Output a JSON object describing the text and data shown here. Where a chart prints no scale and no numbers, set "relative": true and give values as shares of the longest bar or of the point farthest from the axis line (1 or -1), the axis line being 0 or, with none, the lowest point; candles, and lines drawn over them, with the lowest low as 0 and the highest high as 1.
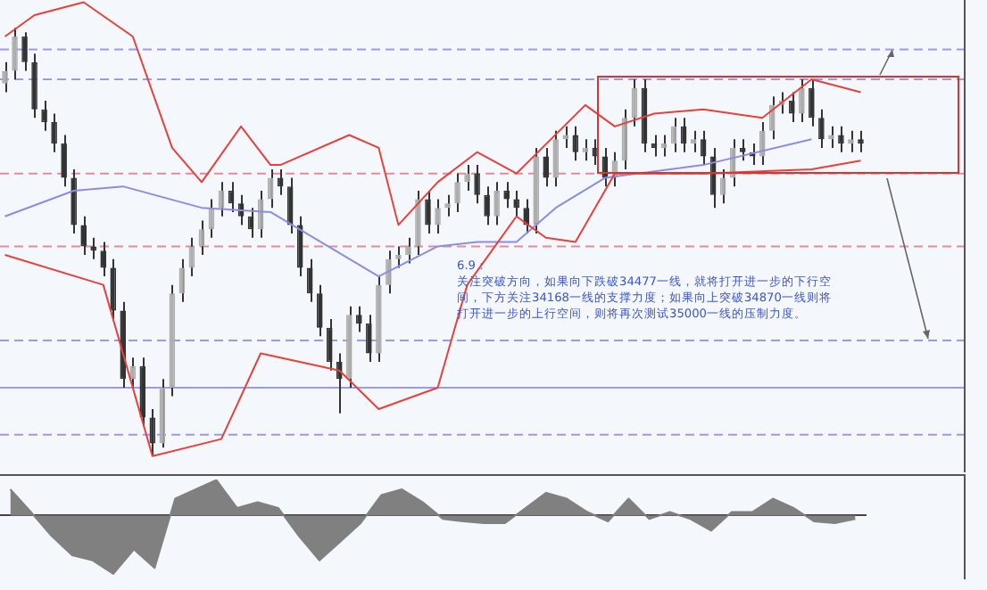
{
  "chart_data": [
    {
      "type": "candlestick",
      "relative": true,
      "color": "#333333",
      "colors": [
        "#adadad",
        "#adadad",
        "#333333",
        "#333333",
        "#333333",
        "#333333",
        "#333333",
        "#333333",
        "#333333",
        "#333333",
        "#333333",
        "#333333",
        "#333333",
        "#adadad",
        "#333333",
        "#333333",
        "#adadad",
        "#adadad",
        "#adadad",
        "#adadad",
        "#adadad",
        "#adadad",
        "#adadad",
        "#333333",
        "#333333",
        "#333333",
        "#adadad",
        "#adadad",
        "#333333",
        "#333333",
        "#333333",
        "#333333",
        "#333333",
        "#333333",
        "#333333",
        "#adadad",
        "#333333",
        "#333333",
        "#adadad",
        "#adadad",
        "#adadad",
        "#adadad",
        "#adadad",
        "#333333",
        "#adadad",
        "#adadad",
        "#adadad",
        "#adadad",
        "#333333",
        "#333333",
        "#adadad",
        "#333333",
        "#333333",
        "#333333",
        "#adadad",
        "#333333",
        "#adadad",
        "#adadad",
        "#333333",
        "#adadad",
        "#333333",
        "#333333",
        "#adadad",
        "#adadad",
        "#adadad",
        "#333333",
        "#333333",
        "#adadad",
        "#adadad",
        "#333333",
        "#adadad",
        "#333333",
        "#333333",
        "#adadad",
        "#adadad",
        "#333333",
        "#333333",
        "#adadad",
        "#adadad",
        "#adadad",
        "#333333",
        "#adadad",
        "#333333",
        "#333333",
        "#adadad",
        "#333333",
        "#adadad",
        "#333333"
      ],
      "categories": [
        null,
        null,
        null,
        null,
        null,
        null,
        null,
        null,
        null,
        null,
        null,
        null,
        null,
        null,
        null,
        null,
        null,
        null,
        null,
        null,
        null,
        null,
        null,
        null,
        null,
        null,
        null,
        null,
        null,
        null,
        null,
        null,
        null,
        null,
        null,
        null,
        null,
        null,
        null,
        null,
        null,
        null,
        null,
        null,
        null,
        null,
        null,
        null,
        null,
        null,
        null,
        null,
        null,
        null,
        null,
        null,
        null,
        null,
        null,
        null,
        null,
        null,
        null,
        null,
        null,
        null,
        null,
        null,
        null,
        null,
        null,
        null,
        null,
        null,
        null,
        null,
        null,
        null,
        null,
        null,
        null,
        null,
        null,
        null,
        null,
        null,
        null,
        null
      ],
      "ohlc": [
        [
          0.87,
          0.92,
          0.85,
          0.9
        ],
        [
          0.9,
          1,
          0.88,
          0.98
        ],
        [
          0.98,
          0.99,
          0.9,
          0.92
        ],
        [
          0.92,
          0.94,
          0.79,
          0.81
        ],
        [
          0.81,
          0.83,
          0.76,
          0.78
        ],
        [
          0.78,
          0.8,
          0.71,
          0.73
        ],
        [
          0.73,
          0.75,
          0.63,
          0.65
        ],
        [
          0.65,
          0.67,
          0.52,
          0.54
        ],
        [
          0.54,
          0.56,
          0.47,
          0.49
        ],
        [
          0.49,
          0.51,
          0.46,
          0.48
        ],
        [
          0.48,
          0.5,
          0.42,
          0.44
        ],
        [
          0.44,
          0.46,
          0.32,
          0.34
        ],
        [
          0.34,
          0.36,
          0.16,
          0.18
        ],
        [
          0.18,
          0.23,
          0.16,
          0.21
        ],
        [
          0.21,
          0.23,
          0.07,
          0.09
        ],
        [
          0.09,
          0.11,
          0,
          0.03
        ],
        [
          0.03,
          0.18,
          0.02,
          0.16
        ],
        [
          0.16,
          0.4,
          0.14,
          0.38
        ],
        [
          0.38,
          0.46,
          0.36,
          0.44
        ],
        [
          0.44,
          0.51,
          0.42,
          0.49
        ],
        [
          0.49,
          0.55,
          0.47,
          0.53
        ],
        [
          0.53,
          0.6,
          0.51,
          0.58
        ],
        [
          0.58,
          0.64,
          0.56,
          0.62
        ],
        [
          0.62,
          0.64,
          0.57,
          0.59
        ],
        [
          0.59,
          0.61,
          0.54,
          0.56
        ],
        [
          0.56,
          0.58,
          0.51,
          0.53
        ],
        [
          0.53,
          0.62,
          0.51,
          0.6
        ],
        [
          0.6,
          0.67,
          0.58,
          0.65
        ],
        [
          0.65,
          0.67,
          0.61,
          0.63
        ],
        [
          0.63,
          0.65,
          0.52,
          0.54
        ],
        [
          0.54,
          0.56,
          0.42,
          0.44
        ],
        [
          0.44,
          0.46,
          0.36,
          0.38
        ],
        [
          0.38,
          0.4,
          0.28,
          0.3
        ],
        [
          0.3,
          0.32,
          0.2,
          0.22
        ],
        [
          0.22,
          0.24,
          0.1,
          0.18
        ],
        [
          0.18,
          0.35,
          0.16,
          0.33
        ],
        [
          0.33,
          0.35,
          0.29,
          0.31
        ],
        [
          0.31,
          0.33,
          0.22,
          0.24
        ],
        [
          0.24,
          0.42,
          0.22,
          0.4
        ],
        [
          0.4,
          0.48,
          0.38,
          0.46
        ],
        [
          0.46,
          0.49,
          0.44,
          0.47
        ],
        [
          0.47,
          0.51,
          0.45,
          0.49
        ],
        [
          0.49,
          0.62,
          0.47,
          0.6
        ],
        [
          0.6,
          0.62,
          0.52,
          0.54
        ],
        [
          0.54,
          0.6,
          0.52,
          0.58
        ],
        [
          0.58,
          0.61,
          0.56,
          0.59
        ],
        [
          0.59,
          0.66,
          0.57,
          0.64
        ],
        [
          0.64,
          0.68,
          0.62,
          0.66
        ],
        [
          0.66,
          0.68,
          0.59,
          0.61
        ],
        [
          0.61,
          0.63,
          0.54,
          0.56
        ],
        [
          0.56,
          0.64,
          0.54,
          0.62
        ],
        [
          0.62,
          0.64,
          0.58,
          0.6
        ],
        [
          0.6,
          0.62,
          0.56,
          0.58
        ],
        [
          0.58,
          0.6,
          0.52,
          0.54
        ],
        [
          0.54,
          0.72,
          0.52,
          0.7
        ],
        [
          0.7,
          0.72,
          0.63,
          0.65
        ],
        [
          0.65,
          0.76,
          0.63,
          0.74
        ],
        [
          0.74,
          0.77,
          0.72,
          0.75
        ],
        [
          0.75,
          0.77,
          0.69,
          0.71
        ],
        [
          0.71,
          0.74,
          0.69,
          0.72
        ],
        [
          0.72,
          0.74,
          0.68,
          0.7
        ],
        [
          0.7,
          0.72,
          0.63,
          0.65
        ],
        [
          0.65,
          0.71,
          0.63,
          0.69
        ],
        [
          0.69,
          0.81,
          0.67,
          0.79
        ],
        [
          0.79,
          0.88,
          0.77,
          0.86
        ],
        [
          0.86,
          0.88,
          0.71,
          0.73
        ],
        [
          0.73,
          0.75,
          0.7,
          0.72
        ],
        [
          0.72,
          0.75,
          0.7,
          0.73
        ],
        [
          0.73,
          0.79,
          0.71,
          0.77
        ],
        [
          0.77,
          0.79,
          0.71,
          0.73
        ],
        [
          0.73,
          0.76,
          0.71,
          0.74
        ],
        [
          0.74,
          0.76,
          0.68,
          0.7
        ],
        [
          0.7,
          0.72,
          0.58,
          0.61
        ],
        [
          0.61,
          0.67,
          0.59,
          0.65
        ],
        [
          0.65,
          0.74,
          0.63,
          0.72
        ],
        [
          0.72,
          0.74,
          0.69,
          0.71
        ],
        [
          0.71,
          0.73,
          0.68,
          0.7
        ],
        [
          0.7,
          0.78,
          0.68,
          0.76
        ],
        [
          0.76,
          0.84,
          0.74,
          0.82
        ],
        [
          0.82,
          0.85,
          0.8,
          0.83
        ],
        [
          0.83,
          0.85,
          0.78,
          0.8
        ],
        [
          0.8,
          0.88,
          0.78,
          0.86
        ],
        [
          0.86,
          0.88,
          0.77,
          0.79
        ],
        [
          0.79,
          0.81,
          0.72,
          0.74
        ],
        [
          0.74,
          0.77,
          0.72,
          0.75
        ],
        [
          0.75,
          0.77,
          0.71,
          0.73
        ],
        [
          0.73,
          0.76,
          0.71,
          0.74
        ],
        [
          0.74,
          0.76,
          0.71,
          0.73
        ]
      ],
      "series": [
        {
          "type": "line",
          "color": "#e8403a",
          "values": [
            0.98,
            null,
            null,
            1.03,
            null,
            null,
            null,
            null,
            1.06,
            null,
            null,
            null,
            null,
            0.98,
            null,
            null,
            null,
            0.72,
            null,
            null,
            0.64,
            null,
            null,
            null,
            0.77,
            null,
            null,
            0.68,
            0.68,
            null,
            null,
            null,
            null,
            null,
            null,
            0.75,
            null,
            null,
            0.72,
            null,
            0.54,
            null,
            null,
            null,
            0.64,
            null,
            null,
            null,
            0.71,
            null,
            null,
            null,
            0.66,
            null,
            null,
            null,
            null,
            null,
            null,
            0.82,
            null,
            null,
            0.77,
            null,
            null,
            null,
            0.8,
            null,
            null,
            null,
            null,
            0.81,
            null,
            null,
            null,
            null,
            null,
            0.79,
            null,
            null,
            null,
            null,
            0.88,
            null,
            null,
            null,
            null,
            0.85
          ]
        },
        {
          "type": "line",
          "color": "#e8403a",
          "values": [
            0.47,
            null,
            null,
            null,
            null,
            null,
            null,
            null,
            null,
            null,
            0.4,
            null,
            null,
            null,
            null,
            0,
            null,
            null,
            null,
            null,
            null,
            null,
            0.04,
            null,
            null,
            null,
            0.24,
            null,
            null,
            null,
            null,
            null,
            null,
            null,
            0.2,
            null,
            null,
            null,
            0.11,
            null,
            null,
            null,
            null,
            null,
            0.16,
            null,
            null,
            0.4,
            null,
            null,
            null,
            null,
            0.56,
            null,
            null,
            0.51,
            null,
            null,
            0.5,
            null,
            null,
            null,
            0.66,
            null,
            null,
            null,
            null,
            null,
            null,
            null,
            null,
            0.66,
            null,
            null,
            null,
            null,
            null,
            null,
            null,
            null,
            null,
            null,
            0.67,
            null,
            null,
            null,
            null,
            0.69
          ]
        },
        {
          "type": "line",
          "color": "#8c8ce6",
          "values": [
            0.56,
            null,
            null,
            null,
            null,
            null,
            null,
            0.62,
            null,
            null,
            null,
            null,
            0.63,
            null,
            null,
            null,
            null,
            null,
            null,
            null,
            0.58,
            null,
            null,
            null,
            null,
            null,
            null,
            0.57,
            null,
            null,
            null,
            null,
            null,
            null,
            null,
            null,
            null,
            null,
            0.42,
            null,
            null,
            null,
            null,
            null,
            0.49,
            null,
            null,
            null,
            0.5,
            null,
            null,
            null,
            0.5,
            null,
            null,
            null,
            0.58,
            null,
            null,
            null,
            null,
            0.65,
            null,
            null,
            null,
            null,
            null,
            null,
            null,
            null,
            null,
            0.68,
            null,
            null,
            null,
            null,
            null,
            null,
            null,
            null,
            null,
            null,
            0.74,
            null,
            null,
            null,
            null,
            null
          ]
        }
      ],
      "ref_lines": [
        {
          "axis": "y",
          "value": 0.95,
          "color": "#9a9af0",
          "line_style": "dashed"
        },
        {
          "axis": "y",
          "value": 0.88,
          "color": "#9a9af0",
          "line_style": "dashed"
        },
        {
          "axis": "y",
          "value": 0.66,
          "color": "#e88a95",
          "line_style": "dashed"
        },
        {
          "axis": "y",
          "value": 0.49,
          "color": "#e88a95",
          "line_style": "dashed"
        },
        {
          "axis": "y",
          "value": 0.27,
          "color": "#9a9af0",
          "line_style": "dashed"
        },
        {
          "axis": "y",
          "value": 0.16,
          "color": "#9a9af0",
          "line_style": "solid"
        },
        {
          "axis": "y",
          "value": 0.05,
          "color": "#9a9af0",
          "line_style": "dashed"
        }
      ],
      "annotations": [
        "6.9：",
        "关注突破方向，如果向下跌破34477一线，就将打开进一步的下行空间，下方关注34168一线的支撑力度；如果向上突破34870一线则将打开进一步的上行空间，则将再次测试35000一线的压制力度。"
      ]
    },
    {
      "type": "area",
      "relative": true,
      "color": "#808080",
      "categories": [
        null,
        null,
        null,
        null,
        null,
        null,
        null,
        null,
        null,
        null,
        null,
        null,
        null,
        null,
        null,
        null,
        null,
        null,
        null,
        null,
        null,
        null,
        null,
        null,
        null,
        null,
        null,
        null,
        null,
        null,
        null,
        null,
        null,
        null,
        null,
        null,
        null,
        null,
        null,
        null,
        null,
        null
      ],
      "values": [
        0.45,
        0.06,
        -0.35,
        -0.68,
        -0.77,
        -1,
        -0.58,
        -0.9,
        0.29,
        0.45,
        0.61,
        0.13,
        0.23,
        0.13,
        -0.35,
        -0.77,
        -0.45,
        -0.13,
        0.35,
        0.45,
        0.23,
        -0.06,
        -0.1,
        -0.13,
        -0.13,
        0.13,
        0.39,
        0.29,
        0.06,
        -0.1,
        0.29,
        -0.06,
        0.06,
        -0.06,
        -0.26,
        0.06,
        0.06,
        0.29,
        0.13,
        -0.1,
        -0.13,
        -0.06
      ]
    }
  ]
}
